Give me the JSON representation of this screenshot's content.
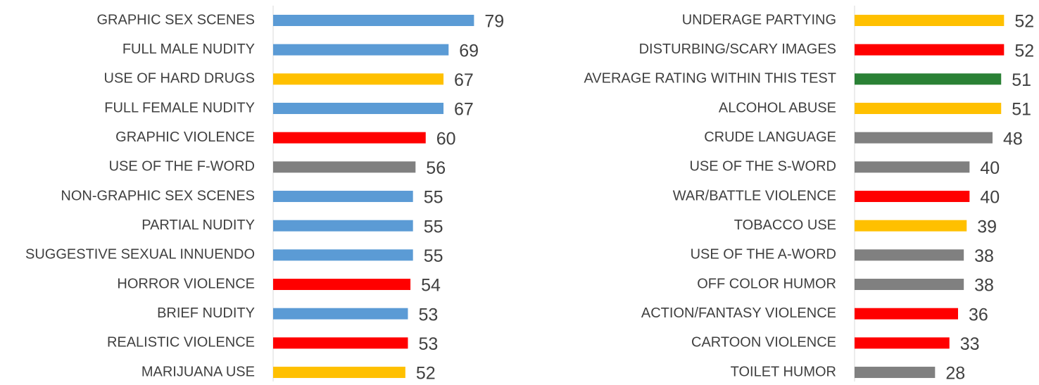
{
  "chart_data": [
    {
      "type": "hbar",
      "categories": [
        "GRAPHIC SEX SCENES",
        "FULL MALE NUDITY",
        "USE OF HARD DRUGS",
        "FULL FEMALE NUDITY",
        "GRAPHIC VIOLENCE",
        "USE OF THE F-WORD",
        "NON-GRAPHIC SEX SCENES",
        "PARTIAL NUDITY",
        "SUGGESTIVE SEXUAL INNUENDO",
        "HORROR VIOLENCE",
        "BRIEF NUDITY",
        "REALISTIC VIOLENCE",
        "MARIJUANA USE"
      ],
      "values": [
        79,
        69,
        67,
        67,
        60,
        56,
        55,
        55,
        55,
        54,
        53,
        53,
        52
      ],
      "colors": [
        "#5b9bd5",
        "#5b9bd5",
        "#ffc000",
        "#5b9bd5",
        "#ff0000",
        "#808080",
        "#5b9bd5",
        "#5b9bd5",
        "#5b9bd5",
        "#ff0000",
        "#5b9bd5",
        "#ff0000",
        "#ffc000"
      ],
      "xlim": [
        0,
        80
      ]
    },
    {
      "type": "hbar",
      "categories": [
        "UNDERAGE PARTYING",
        "DISTURBING/SCARY IMAGES",
        "AVERAGE RATING WITHIN THIS TEST",
        "ALCOHOL ABUSE",
        "CRUDE LANGUAGE",
        "USE OF THE S-WORD",
        "WAR/BATTLE VIOLENCE",
        "TOBACCO USE",
        "USE OF THE A-WORD",
        "OFF COLOR HUMOR",
        "ACTION/FANTASY VIOLENCE",
        "CARTOON VIOLENCE",
        "TOILET HUMOR"
      ],
      "values": [
        52,
        52,
        51,
        51,
        48,
        40,
        40,
        39,
        38,
        38,
        36,
        33,
        28
      ],
      "colors": [
        "#ffc000",
        "#ff0000",
        "#2a8135",
        "#ffc000",
        "#808080",
        "#808080",
        "#ff0000",
        "#ffc000",
        "#808080",
        "#808080",
        "#ff0000",
        "#ff0000",
        "#808080"
      ],
      "xlim": [
        0,
        60
      ]
    }
  ]
}
